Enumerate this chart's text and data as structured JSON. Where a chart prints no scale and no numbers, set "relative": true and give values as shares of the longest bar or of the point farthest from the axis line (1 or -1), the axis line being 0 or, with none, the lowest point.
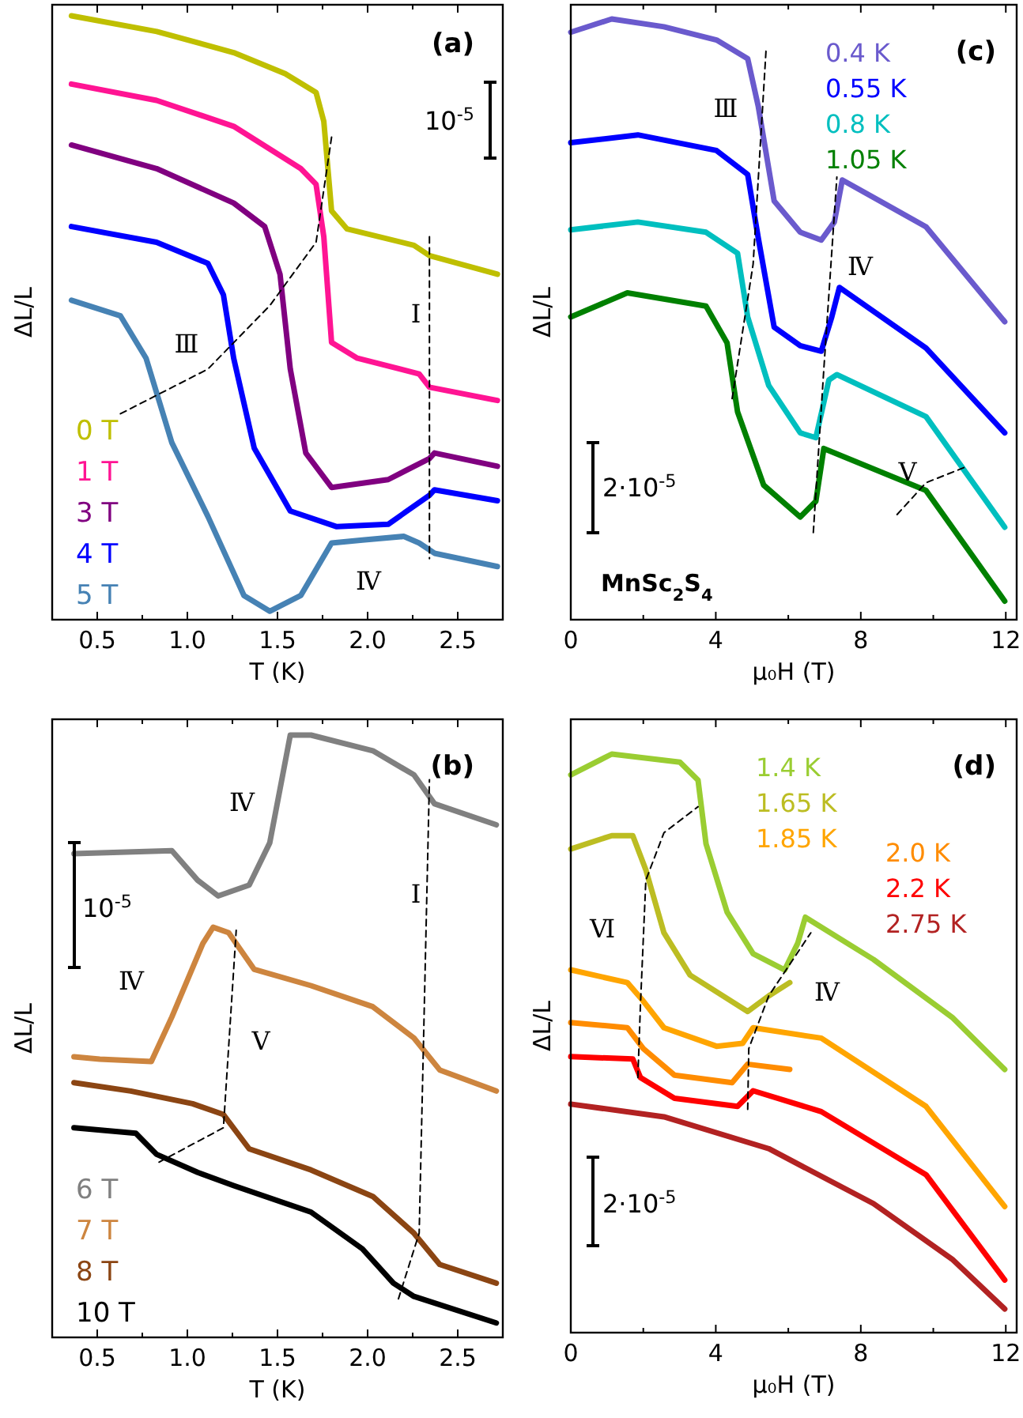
{
  "chart_data": [
    {
      "type": "line",
      "relative": true,
      "xlabel": "T (K)",
      "ylabel": "ΔL/L",
      "xlim": [
        0.25,
        2.75
      ],
      "xticks": [
        0.5,
        {
          "value": 0.75,
          "label": null
        },
        {
          "value": 1.0,
          "label": "1.0"
        },
        {
          "value": 1.25,
          "label": null
        },
        1.5,
        {
          "value": 1.75,
          "label": null
        },
        {
          "value": 2.0,
          "label": "2.0"
        },
        {
          "value": 2.25,
          "label": null
        },
        2.5
      ],
      "tick_labels": "x",
      "legend": "bottom left",
      "annotations": [
        "(a)",
        "10$^{-5}$",
        "Ⅲ",
        "Ⅰ",
        "Ⅳ"
      ],
      "series": [
        {
          "name": "0 T",
          "color": "#bfbf00",
          "x": [
            0.357,
            0.83,
            1.257,
            1.543,
            1.714,
            1.757,
            1.8,
            1.886,
            2.257,
            2.343,
            2.72
          ],
          "values": [
            1.0,
            0.974,
            0.939,
            0.904,
            0.873,
            0.825,
            0.677,
            0.647,
            0.62,
            0.603,
            0.572
          ]
        },
        {
          "name": "1 T",
          "color": "#ff1493",
          "x": [
            0.357,
            0.829,
            1.257,
            1.629,
            1.714,
            1.757,
            1.8,
            1.943,
            2.286,
            2.343,
            2.72
          ],
          "values": [
            0.887,
            0.86,
            0.817,
            0.747,
            0.721,
            0.634,
            0.459,
            0.433,
            0.407,
            0.385,
            0.363
          ]
        },
        {
          "name": "3 T",
          "color": "#800080",
          "x": [
            0.357,
            0.829,
            1.257,
            1.429,
            1.514,
            1.571,
            1.657,
            1.8,
            2.114,
            2.343,
            2.371,
            2.72
          ],
          "values": [
            0.786,
            0.747,
            0.69,
            0.651,
            0.572,
            0.415,
            0.276,
            0.219,
            0.232,
            0.267,
            0.276,
            0.254
          ]
        },
        {
          "name": "4 T",
          "color": "#0000ff",
          "x": [
            0.357,
            0.829,
            1.114,
            1.2,
            1.257,
            1.371,
            1.571,
            1.829,
            2.114,
            2.343,
            2.371,
            2.72
          ],
          "values": [
            0.651,
            0.625,
            0.59,
            0.538,
            0.433,
            0.284,
            0.18,
            0.154,
            0.158,
            0.206,
            0.215,
            0.197
          ]
        },
        {
          "name": "5 T",
          "color": "#4682b4",
          "x": [
            0.357,
            0.629,
            0.771,
            0.914,
            1.114,
            1.314,
            1.457,
            1.629,
            1.8,
            1.971,
            2.2,
            2.286,
            2.371,
            2.72
          ],
          "values": [
            0.529,
            0.503,
            0.433,
            0.293,
            0.171,
            0.04,
            0.014,
            0.04,
            0.127,
            0.132,
            0.138,
            0.127,
            0.11,
            0.088
          ]
        },
        {
          "type": "line",
          "line_style": "dashed",
          "color": "#000000",
          "x": [
            0.629,
            1.114,
            1.457,
            1.714,
            1.8
          ],
          "values": [
            0.341,
            0.415,
            0.52,
            0.625,
            0.799
          ]
        },
        {
          "type": "line",
          "line_style": "dashed",
          "color": "#000000",
          "x": [
            2.343,
            2.343
          ],
          "values": [
            0.634,
            0.101
          ]
        }
      ]
    },
    {
      "type": "line",
      "relative": true,
      "xlabel": "μ₀H (T)",
      "ylabel": "ΔL/L",
      "xlim": [
        0,
        12.3
      ],
      "xticks": [
        0,
        {
          "value": 2,
          "label": null
        },
        4,
        {
          "value": 6,
          "label": null
        },
        8,
        {
          "value": 10,
          "label": null
        },
        12
      ],
      "tick_labels": "x",
      "legend": "top right",
      "annotations": [
        "(c)",
        "2·10$^{-5}$",
        "MnSc$_{2}$S$_{4}$",
        "Ⅲ",
        "Ⅳ",
        "Ⅴ"
      ],
      "series": [
        {
          "name": "0.4 K",
          "color": "#6a5acd",
          "x": [
            0,
            1.13,
            2.57,
            4.02,
            4.88,
            5.17,
            5.61,
            6.33,
            6.91,
            7.27,
            7.49,
            9.8,
            11.97
          ],
          "values": [
            0.978,
            1.0,
            0.987,
            0.965,
            0.934,
            0.855,
            0.697,
            0.645,
            0.632,
            0.662,
            0.732,
            0.654,
            0.496
          ]
        },
        {
          "name": "0.55 K",
          "color": "#0000ff",
          "x": [
            0,
            1.85,
            4.02,
            4.88,
            5.17,
            5.61,
            6.33,
            6.91,
            7.2,
            7.41,
            9.8,
            11.97
          ],
          "values": [
            0.794,
            0.807,
            0.781,
            0.741,
            0.636,
            0.487,
            0.456,
            0.447,
            0.504,
            0.553,
            0.452,
            0.311
          ]
        },
        {
          "name": "0.8 K",
          "color": "#00bfbf",
          "x": [
            0,
            1.85,
            3.73,
            4.6,
            4.88,
            5.46,
            6.33,
            6.76,
            7.12,
            7.34,
            9.8,
            11.97
          ],
          "values": [
            0.649,
            0.662,
            0.645,
            0.61,
            0.504,
            0.39,
            0.311,
            0.303,
            0.399,
            0.408,
            0.338,
            0.154
          ]
        },
        {
          "name": "1.05 K",
          "color": "#008000",
          "x": [
            0,
            1.56,
            3.73,
            4.31,
            4.6,
            5.32,
            6.33,
            6.76,
            6.98,
            9.8,
            11.97
          ],
          "values": [
            0.504,
            0.544,
            0.522,
            0.461,
            0.346,
            0.224,
            0.171,
            0.197,
            0.285,
            0.215,
            0.031
          ]
        },
        {
          "type": "line",
          "line_style": "dashed",
          "color": "#000000",
          "x": [
            4.45,
            5.03,
            5.39
          ],
          "values": [
            0.368,
            0.592,
            0.952
          ]
        },
        {
          "type": "line",
          "line_style": "dashed",
          "color": "#000000",
          "x": [
            6.69,
            6.98,
            7.34
          ],
          "values": [
            0.145,
            0.417,
            0.737
          ]
        },
        {
          "type": "line",
          "line_style": "dashed",
          "color": "#000000",
          "x": [
            9.0,
            9.8,
            10.88
          ],
          "values": [
            0.175,
            0.228,
            0.254
          ]
        }
      ]
    },
    {
      "type": "line",
      "relative": true,
      "xlabel": "T (K)",
      "ylabel": "ΔL/L",
      "xlim": [
        0.25,
        2.75
      ],
      "xticks": [
        0.5,
        {
          "value": 0.75,
          "label": null
        },
        {
          "value": 1.0,
          "label": "1.0"
        },
        {
          "value": 1.25,
          "label": null
        },
        1.5,
        {
          "value": 1.75,
          "label": null
        },
        {
          "value": 2.0,
          "label": "2.0"
        },
        {
          "value": 2.25,
          "label": null
        },
        2.5
      ],
      "tick_labels": "x",
      "legend": "bottom left",
      "annotations": [
        "(b)",
        "10$^{-5}$",
        "Ⅳ",
        "Ⅳ",
        "Ⅴ",
        "Ⅰ"
      ],
      "series": [
        {
          "name": "6 T",
          "color": "#808080",
          "x": [
            0.371,
            0.914,
            1.057,
            1.171,
            1.343,
            1.457,
            1.529,
            1.571,
            1.686,
            2.029,
            2.257,
            2.371,
            2.714
          ],
          "values": [
            0.803,
            0.808,
            0.759,
            0.733,
            0.751,
            0.821,
            0.934,
            1.0,
            1.0,
            0.974,
            0.934,
            0.886,
            0.851
          ]
        },
        {
          "name": "7 T",
          "color": "#cd853f",
          "x": [
            0.371,
            0.514,
            0.8,
            0.914,
            1.086,
            1.143,
            1.229,
            1.371,
            1.686,
            2.029,
            2.257,
            2.4,
            2.714
          ],
          "values": [
            0.466,
            0.462,
            0.458,
            0.532,
            0.654,
            0.681,
            0.672,
            0.611,
            0.584,
            0.549,
            0.497,
            0.444,
            0.409
          ]
        },
        {
          "name": "8 T",
          "color": "#8b4513",
          "x": [
            0.371,
            0.686,
            1.029,
            1.2,
            1.343,
            1.686,
            2.029,
            2.257,
            2.4,
            2.714
          ],
          "values": [
            0.423,
            0.409,
            0.388,
            0.37,
            0.313,
            0.278,
            0.234,
            0.173,
            0.121,
            0.09
          ]
        },
        {
          "name": "10 T",
          "color": "#000000",
          "x": [
            0.371,
            0.714,
            0.829,
            1.057,
            1.257,
            1.686,
            1.971,
            2.143,
            2.257,
            2.714
          ],
          "values": [
            0.348,
            0.339,
            0.304,
            0.274,
            0.252,
            0.208,
            0.147,
            0.09,
            0.068,
            0.024
          ]
        },
        {
          "type": "line",
          "line_style": "dashed",
          "color": "#000000",
          "x": [
            0.843,
            1.2,
            1.271
          ],
          "values": [
            0.291,
            0.348,
            0.676
          ]
        },
        {
          "type": "line",
          "line_style": "dashed",
          "color": "#000000",
          "x": [
            2.171,
            2.286,
            2.343
          ],
          "values": [
            0.064,
            0.173,
            0.926
          ]
        }
      ]
    },
    {
      "type": "line",
      "relative": true,
      "xlabel": "μ₀H (T)",
      "ylabel": "ΔL/L",
      "xlim": [
        0,
        12.3
      ],
      "xticks": [
        0,
        {
          "value": 2,
          "label": null
        },
        4,
        {
          "value": 6,
          "label": null
        },
        8,
        {
          "value": 10,
          "label": null
        },
        12
      ],
      "tick_labels": "x",
      "legend": "top right",
      "annotations": [
        "(d)",
        "2·10$^{-5}$",
        "Ⅵ",
        "Ⅳ"
      ],
      "series": [
        {
          "name": "1.4 K",
          "color": "#9acd32",
          "x": [
            0,
            1.13,
            3.01,
            3.51,
            3.73,
            4.31,
            5.03,
            5.9,
            6.26,
            6.47,
            8.35,
            10.52,
            11.97
          ],
          "values": [
            0.964,
            1.0,
            0.986,
            0.955,
            0.845,
            0.727,
            0.655,
            0.627,
            0.673,
            0.718,
            0.645,
            0.545,
            0.455
          ]
        },
        {
          "name": "1.65 K",
          "color": "#bcbd22",
          "x": [
            0,
            1.13,
            1.71,
            2.07,
            2.57,
            3.29,
            4.88,
            5.46,
            6.04
          ],
          "values": [
            0.836,
            0.859,
            0.859,
            0.8,
            0.691,
            0.618,
            0.555,
            0.582,
            0.605
          ]
        },
        {
          "name": "1.85 K",
          "color": "#ffa500",
          "x": [
            0,
            1.56,
            2.0,
            2.57,
            4.02,
            4.74,
            5.03,
            6.91,
            9.8,
            11.97
          ],
          "values": [
            0.627,
            0.605,
            0.573,
            0.527,
            0.495,
            0.5,
            0.527,
            0.509,
            0.391,
            0.218
          ]
        },
        {
          "name": "2.0 K",
          "color": "#ff8c00",
          "x": [
            0,
            1.56,
            2.0,
            2.86,
            4.45,
            4.88,
            6.04
          ],
          "values": [
            0.536,
            0.527,
            0.491,
            0.445,
            0.432,
            0.464,
            0.455
          ]
        },
        {
          "name": "2.2 K",
          "color": "#ff0000",
          "x": [
            0,
            1.71,
            1.92,
            2.86,
            4.6,
            5.03,
            6.91,
            9.8,
            11.97
          ],
          "values": [
            0.477,
            0.473,
            0.441,
            0.405,
            0.391,
            0.418,
            0.382,
            0.273,
            0.091
          ]
        },
        {
          "name": "2.75 K",
          "color": "#b22222",
          "x": [
            0,
            2.57,
            5.46,
            8.35,
            10.52,
            11.97
          ],
          "values": [
            0.395,
            0.373,
            0.318,
            0.223,
            0.127,
            0.041
          ]
        },
        {
          "type": "line",
          "line_style": "dashed",
          "color": "#000000",
          "x": [
            1.85,
            1.92,
            2.07,
            2.57,
            3.51
          ],
          "values": [
            0.441,
            0.564,
            0.782,
            0.864,
            0.909
          ]
        },
        {
          "type": "line",
          "line_style": "dashed",
          "color": "#000000",
          "x": [
            4.88,
            4.91,
            5.46,
            6.62
          ],
          "values": [
            0.386,
            0.491,
            0.582,
            0.691
          ]
        }
      ]
    }
  ]
}
